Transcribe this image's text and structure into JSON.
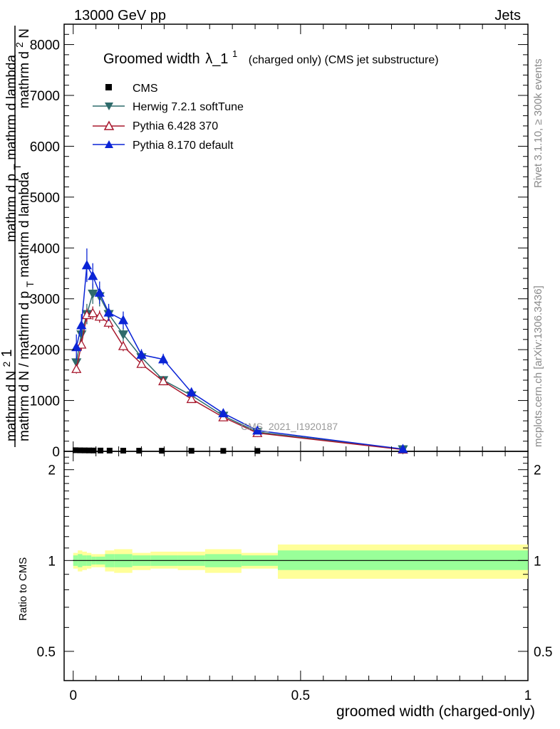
{
  "header": {
    "left": "13000 GeV pp",
    "right": "Jets"
  },
  "side_labels": {
    "rivet": "Rivet 3.1.10, ≥ 300k events",
    "mcplots": "mcplots.cern.ch [arXiv:1306.3436]"
  },
  "watermark": "CMS_2021_I1920187",
  "y_axis_label": {
    "prefix": "1",
    "num": "mathrm d N",
    "num_sub": "2",
    "den": "mathrm d N / mathrm d p",
    "den_sub": "T",
    "den_tail": "mathrm d lambda",
    "upper_num": "mathrm d",
    "upper_num_sup": "2",
    "upper_num_tail": "N",
    "upper_den": "mathrm d p",
    "upper_den_sub": "T",
    "upper_den_tail": "mathrm d lambda"
  },
  "chart_data": {
    "type": "line",
    "title": "Groomed width",
    "title_symbol": "λ_1",
    "title_sup": "1",
    "title_suffix": "(charged only) (CMS jet substructure)",
    "xlabel": "groomed width (charged-only)",
    "ylabel_ratio": "Ratio to CMS",
    "xlim": [
      -0.02,
      1.0
    ],
    "ylim": [
      0,
      8400
    ],
    "ratio_ylim": [
      0.4,
      2.3
    ],
    "x_ticks": [
      0,
      0.5,
      1
    ],
    "x_tick_labels": [
      "0",
      "0.5",
      "1"
    ],
    "y_ticks": [
      0,
      1000,
      2000,
      3000,
      4000,
      5000,
      6000,
      7000,
      8000
    ],
    "y_tick_labels": [
      "0",
      "1000",
      "2000",
      "3000",
      "4000",
      "5000",
      "6000",
      "7000",
      "8000"
    ],
    "ratio_ticks": [
      0.5,
      1,
      2
    ],
    "ratio_tick_labels": [
      "0.5",
      "1",
      "2"
    ],
    "legend": [
      "CMS",
      "Herwig 7.2.1 softTune",
      "Pythia 6.428 370",
      "Pythia 8.170 default"
    ],
    "data_series": {
      "name": "CMS",
      "x": [
        0.005,
        0.015,
        0.025,
        0.035,
        0.045,
        0.06,
        0.08,
        0.11,
        0.145,
        0.195,
        0.26,
        0.33,
        0.405
      ],
      "y": [
        22,
        20,
        19,
        18,
        17,
        16,
        15,
        14,
        13,
        12,
        11,
        10,
        9
      ]
    },
    "series": [
      {
        "name": "Herwig 7.2.1 softTune",
        "color": "#2f6b6b",
        "marker": "triangle-down",
        "x": [
          0.007,
          0.018,
          0.03,
          0.043,
          0.058,
          0.078,
          0.11,
          0.15,
          0.198,
          0.26,
          0.33,
          0.405,
          0.725
        ],
        "y": [
          1750,
          2300,
          2700,
          3100,
          3050,
          2700,
          2300,
          1850,
          1400,
          1100,
          700,
          380,
          40
        ],
        "err": [
          110,
          140,
          200,
          200,
          200,
          150,
          130,
          100,
          80,
          70,
          50,
          40,
          15
        ]
      },
      {
        "name": "Pythia 6.428 370",
        "color": "#a8182d",
        "marker": "triangle-open",
        "x": [
          0.007,
          0.018,
          0.03,
          0.043,
          0.058,
          0.078,
          0.11,
          0.15,
          0.198,
          0.26,
          0.33,
          0.405,
          0.725
        ],
        "y": [
          1620,
          2100,
          2680,
          2720,
          2650,
          2530,
          2070,
          1720,
          1380,
          1030,
          670,
          360,
          35
        ],
        "err": [
          90,
          120,
          130,
          130,
          120,
          110,
          100,
          80,
          70,
          60,
          45,
          35,
          12
        ]
      },
      {
        "name": "Pythia 8.170 default",
        "color": "#0b24d6",
        "marker": "triangle-up",
        "x": [
          0.007,
          0.018,
          0.03,
          0.043,
          0.058,
          0.078,
          0.11,
          0.15,
          0.198,
          0.26,
          0.33,
          0.405,
          0.725
        ],
        "y": [
          2050,
          2480,
          3660,
          3450,
          3120,
          2730,
          2580,
          1900,
          1810,
          1160,
          750,
          410,
          45
        ],
        "err": [
          250,
          220,
          330,
          250,
          220,
          170,
          170,
          110,
          110,
          90,
          60,
          45,
          18
        ]
      }
    ],
    "ratio_bands": {
      "edges": [
        0.0,
        0.01,
        0.02,
        0.03,
        0.04,
        0.05,
        0.07,
        0.09,
        0.13,
        0.17,
        0.23,
        0.29,
        0.37,
        0.45,
        1.0
      ],
      "inner_lo": [
        0.96,
        0.95,
        0.96,
        0.96,
        0.97,
        0.97,
        0.95,
        0.95,
        0.96,
        0.96,
        0.96,
        0.95,
        0.96,
        0.93
      ],
      "inner_hi": [
        1.04,
        1.05,
        1.04,
        1.04,
        1.03,
        1.03,
        1.05,
        1.05,
        1.04,
        1.04,
        1.04,
        1.05,
        1.04,
        1.08
      ],
      "outer_lo": [
        0.94,
        0.92,
        0.93,
        0.94,
        0.95,
        0.95,
        0.92,
        0.91,
        0.93,
        0.94,
        0.93,
        0.91,
        0.94,
        0.87
      ],
      "outer_hi": [
        1.06,
        1.08,
        1.07,
        1.06,
        1.05,
        1.05,
        1.08,
        1.09,
        1.06,
        1.07,
        1.07,
        1.09,
        1.06,
        1.13
      ]
    }
  }
}
